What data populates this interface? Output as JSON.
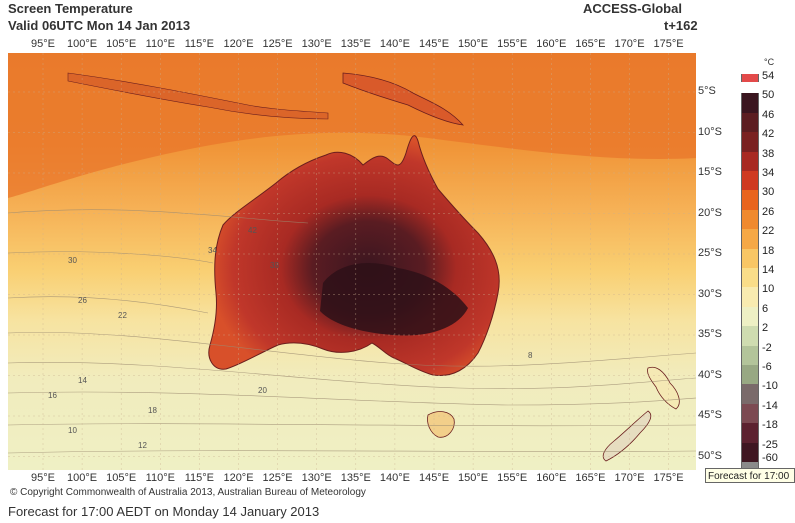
{
  "header": {
    "title": "Screen Temperature",
    "valid": "Valid 06UTC Mon 14 Jan 2013",
    "model": "ACCESS-Global",
    "step": "t+162"
  },
  "lon_labels": [
    "95°E",
    "100°E",
    "105°E",
    "110°E",
    "115°E",
    "120°E",
    "125°E",
    "130°E",
    "135°E",
    "140°E",
    "145°E",
    "150°E",
    "155°E",
    "160°E",
    "165°E",
    "170°E",
    "175°E"
  ],
  "lat_labels": [
    "5°S",
    "10°S",
    "15°S",
    "20°S",
    "25°S",
    "30°S",
    "35°S",
    "40°S",
    "45°S",
    "50°S"
  ],
  "colorbar": {
    "unit": "°C",
    "labels": [
      "54",
      "50",
      "46",
      "42",
      "38",
      "34",
      "30",
      "26",
      "22",
      "18",
      "14",
      "10",
      "6",
      "2",
      "-2",
      "-6",
      "-10",
      "-14",
      "-18",
      "-25",
      "-60"
    ],
    "colors": [
      "#e34a4a",
      "#3b1620",
      "#5c1e22",
      "#7a2222",
      "#a82a23",
      "#cf3a22",
      "#e8651f",
      "#f08a2e",
      "#f5a846",
      "#f8c665",
      "#f9dd89",
      "#f8ebb0",
      "#eef0c4",
      "#cfdcb0",
      "#b3c49a",
      "#98a883",
      "#7a6a6a",
      "#7c4a52",
      "#5c2230",
      "#3f1722",
      "#8a8a8a"
    ]
  },
  "contour_labels": [
    "42",
    "38",
    "34",
    "30",
    "26",
    "22",
    "20",
    "18",
    "16",
    "14",
    "12",
    "10",
    "8"
  ],
  "map": {
    "land_outline_color": "#6b1e1e",
    "grid_color": "#c9b090"
  },
  "tooltip": "Forecast for 17:00",
  "copyright": "© Copyright Commonwealth of Australia 2013, Australian Bureau of Meteorology",
  "forecast_line": "Forecast for 17:00 AEDT on Monday 14 January 2013"
}
